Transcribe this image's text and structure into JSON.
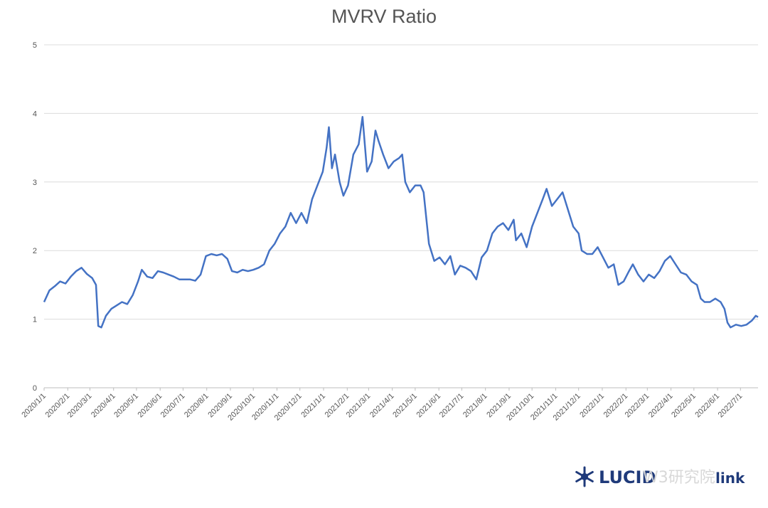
{
  "chart_data": {
    "type": "line",
    "title": "MVRV Ratio",
    "xlabel": "",
    "ylabel": "",
    "ylim": [
      0,
      5
    ],
    "y_ticks": [
      "0",
      "1",
      "2",
      "3",
      "4",
      "5"
    ],
    "x_ticks": [
      "2020/1/1",
      "2020/2/1",
      "2020/3/1",
      "2020/4/1",
      "2020/5/1",
      "2020/6/1",
      "2020/7/1",
      "2020/8/1",
      "2020/9/1",
      "2020/10/1",
      "2020/11/1",
      "2020/12/1",
      "2021/1/1",
      "2021/2/1",
      "2021/3/1",
      "2021/4/1",
      "2021/5/1",
      "2021/6/1",
      "2021/7/1",
      "2021/8/1",
      "2021/9/1",
      "2021/10/1",
      "2021/11/1",
      "2021/12/1",
      "2022/1/1",
      "2022/2/1",
      "2022/3/1",
      "2022/4/1",
      "2022/5/1",
      "2022/6/1",
      "2022/7/1"
    ],
    "grid": true,
    "legend": "none",
    "line_color": "#4472c4",
    "series": [
      {
        "points": [
          [
            "2020/1/1",
            1.25
          ],
          [
            "2020/1/8",
            1.42
          ],
          [
            "2020/1/15",
            1.48
          ],
          [
            "2020/1/22",
            1.55
          ],
          [
            "2020/1/29",
            1.52
          ],
          [
            "2020/2/5",
            1.62
          ],
          [
            "2020/2/12",
            1.7
          ],
          [
            "2020/2/19",
            1.75
          ],
          [
            "2020/2/26",
            1.66
          ],
          [
            "2020/3/4",
            1.6
          ],
          [
            "2020/3/9",
            1.5
          ],
          [
            "2020/3/12",
            0.9
          ],
          [
            "2020/3/16",
            0.88
          ],
          [
            "2020/3/22",
            1.05
          ],
          [
            "2020/3/29",
            1.15
          ],
          [
            "2020/4/5",
            1.2
          ],
          [
            "2020/4/12",
            1.25
          ],
          [
            "2020/4/19",
            1.22
          ],
          [
            "2020/4/26",
            1.35
          ],
          [
            "2020/5/3",
            1.55
          ],
          [
            "2020/5/8",
            1.72
          ],
          [
            "2020/5/15",
            1.62
          ],
          [
            "2020/5/22",
            1.6
          ],
          [
            "2020/5/29",
            1.7
          ],
          [
            "2020/6/5",
            1.68
          ],
          [
            "2020/6/12",
            1.65
          ],
          [
            "2020/6/19",
            1.62
          ],
          [
            "2020/6/26",
            1.58
          ],
          [
            "2020/7/3",
            1.58
          ],
          [
            "2020/7/10",
            1.58
          ],
          [
            "2020/7/17",
            1.56
          ],
          [
            "2020/7/24",
            1.65
          ],
          [
            "2020/7/31",
            1.92
          ],
          [
            "2020/8/7",
            1.95
          ],
          [
            "2020/8/14",
            1.93
          ],
          [
            "2020/8/21",
            1.95
          ],
          [
            "2020/8/28",
            1.88
          ],
          [
            "2020/9/3",
            1.7
          ],
          [
            "2020/9/10",
            1.68
          ],
          [
            "2020/9/17",
            1.72
          ],
          [
            "2020/9/24",
            1.7
          ],
          [
            "2020/10/1",
            1.72
          ],
          [
            "2020/10/8",
            1.75
          ],
          [
            "2020/10/15",
            1.8
          ],
          [
            "2020/10/22",
            2.0
          ],
          [
            "2020/10/29",
            2.1
          ],
          [
            "2020/11/5",
            2.25
          ],
          [
            "2020/11/12",
            2.35
          ],
          [
            "2020/11/19",
            2.55
          ],
          [
            "2020/11/26",
            2.4
          ],
          [
            "2020/12/3",
            2.55
          ],
          [
            "2020/12/10",
            2.4
          ],
          [
            "2020/12/17",
            2.75
          ],
          [
            "2020/12/24",
            2.95
          ],
          [
            "2020/12/31",
            3.15
          ],
          [
            "2021/1/5",
            3.5
          ],
          [
            "2021/1/8",
            3.8
          ],
          [
            "2021/1/12",
            3.2
          ],
          [
            "2021/1/16",
            3.4
          ],
          [
            "2021/1/22",
            3.0
          ],
          [
            "2021/1/27",
            2.8
          ],
          [
            "2021/2/2",
            2.95
          ],
          [
            "2021/2/9",
            3.4
          ],
          [
            "2021/2/16",
            3.55
          ],
          [
            "2021/2/21",
            3.95
          ],
          [
            "2021/2/27",
            3.15
          ],
          [
            "2021/3/5",
            3.3
          ],
          [
            "2021/3/10",
            3.75
          ],
          [
            "2021/3/14",
            3.6
          ],
          [
            "2021/3/20",
            3.4
          ],
          [
            "2021/3/27",
            3.2
          ],
          [
            "2021/4/3",
            3.3
          ],
          [
            "2021/4/10",
            3.35
          ],
          [
            "2021/4/14",
            3.4
          ],
          [
            "2021/4/18",
            3.0
          ],
          [
            "2021/4/24",
            2.85
          ],
          [
            "2021/5/1",
            2.95
          ],
          [
            "2021/5/8",
            2.95
          ],
          [
            "2021/5/12",
            2.85
          ],
          [
            "2021/5/19",
            2.1
          ],
          [
            "2021/5/26",
            1.85
          ],
          [
            "2021/6/2",
            1.9
          ],
          [
            "2021/6/9",
            1.8
          ],
          [
            "2021/6/16",
            1.92
          ],
          [
            "2021/6/22",
            1.65
          ],
          [
            "2021/6/29",
            1.78
          ],
          [
            "2021/7/6",
            1.75
          ],
          [
            "2021/7/13",
            1.7
          ],
          [
            "2021/7/20",
            1.58
          ],
          [
            "2021/7/27",
            1.9
          ],
          [
            "2021/8/3",
            2.0
          ],
          [
            "2021/8/10",
            2.25
          ],
          [
            "2021/8/17",
            2.35
          ],
          [
            "2021/8/24",
            2.4
          ],
          [
            "2021/8/31",
            2.3
          ],
          [
            "2021/9/7",
            2.45
          ],
          [
            "2021/9/10",
            2.15
          ],
          [
            "2021/9/17",
            2.25
          ],
          [
            "2021/9/24",
            2.05
          ],
          [
            "2021/10/1",
            2.35
          ],
          [
            "2021/10/8",
            2.55
          ],
          [
            "2021/10/15",
            2.75
          ],
          [
            "2021/10/20",
            2.9
          ],
          [
            "2021/10/27",
            2.65
          ],
          [
            "2021/11/3",
            2.75
          ],
          [
            "2021/11/10",
            2.85
          ],
          [
            "2021/11/17",
            2.6
          ],
          [
            "2021/11/24",
            2.35
          ],
          [
            "2021/12/1",
            2.25
          ],
          [
            "2021/12/5",
            2.0
          ],
          [
            "2021/12/12",
            1.95
          ],
          [
            "2021/12/19",
            1.95
          ],
          [
            "2021/12/26",
            2.05
          ],
          [
            "2022/1/2",
            1.9
          ],
          [
            "2022/1/9",
            1.75
          ],
          [
            "2022/1/16",
            1.8
          ],
          [
            "2022/1/22",
            1.5
          ],
          [
            "2022/1/29",
            1.55
          ],
          [
            "2022/2/5",
            1.7
          ],
          [
            "2022/2/10",
            1.8
          ],
          [
            "2022/2/17",
            1.65
          ],
          [
            "2022/2/24",
            1.55
          ],
          [
            "2022/3/3",
            1.65
          ],
          [
            "2022/3/10",
            1.6
          ],
          [
            "2022/3/17",
            1.7
          ],
          [
            "2022/3/24",
            1.85
          ],
          [
            "2022/3/31",
            1.92
          ],
          [
            "2022/4/7",
            1.8
          ],
          [
            "2022/4/14",
            1.68
          ],
          [
            "2022/4/21",
            1.65
          ],
          [
            "2022/4/28",
            1.55
          ],
          [
            "2022/5/5",
            1.5
          ],
          [
            "2022/5/10",
            1.3
          ],
          [
            "2022/5/15",
            1.25
          ],
          [
            "2022/5/22",
            1.25
          ],
          [
            "2022/5/29",
            1.3
          ],
          [
            "2022/6/5",
            1.25
          ],
          [
            "2022/6/10",
            1.15
          ],
          [
            "2022/6/14",
            0.95
          ],
          [
            "2022/6/18",
            0.88
          ],
          [
            "2022/6/25",
            0.92
          ],
          [
            "2022/7/2",
            0.9
          ],
          [
            "2022/7/9",
            0.92
          ],
          [
            "2022/7/16",
            0.98
          ],
          [
            "2022/7/21",
            1.05
          ],
          [
            "2022/7/24",
            1.03
          ]
        ]
      }
    ]
  },
  "watermark": {
    "brand": "LUCID",
    "overlay": "W3研究院",
    "suffix": "link",
    "brand_color": "#1f3a7a"
  }
}
